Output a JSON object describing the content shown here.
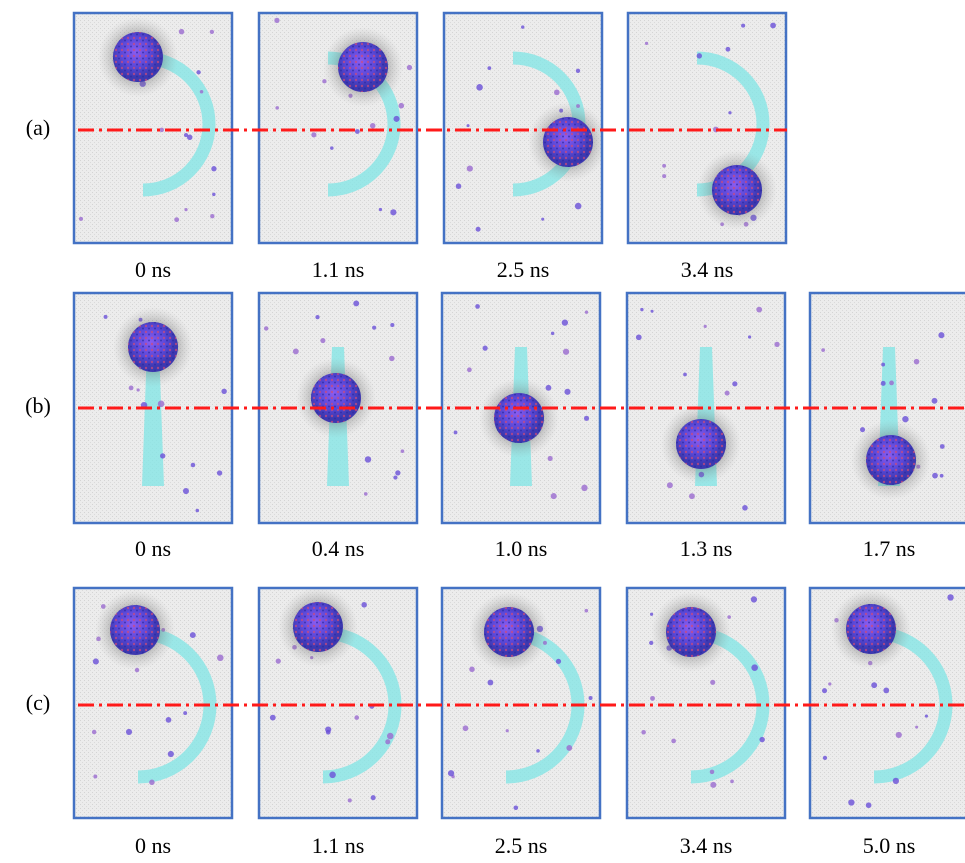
{
  "rows": [
    {
      "label": "(a)",
      "times": [
        "0 ns",
        "1.1 ns",
        "2.5 ns",
        "3.4 ns"
      ]
    },
    {
      "label": "(b)",
      "times": [
        "0 ns",
        "0.4 ns",
        "1.0 ns",
        "1.3 ns",
        "1.7 ns"
      ]
    },
    {
      "label": "(c)",
      "times": [
        "0 ns",
        "1.1 ns",
        "2.5 ns",
        "3.4 ns",
        "5.0 ns"
      ]
    }
  ]
}
